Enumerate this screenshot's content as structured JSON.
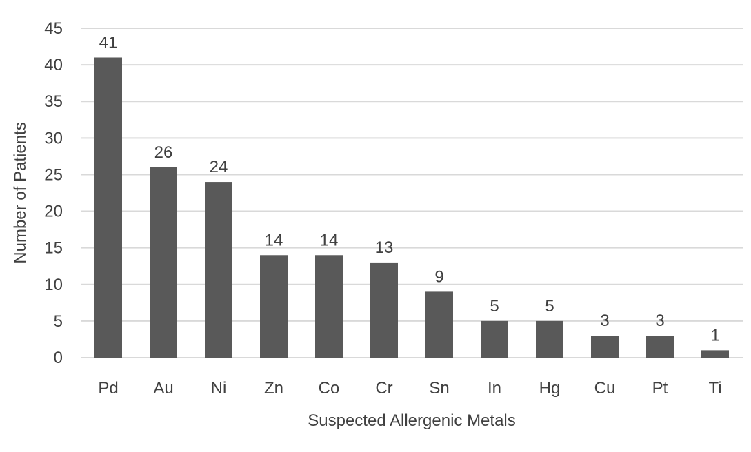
{
  "chart_data": {
    "type": "bar",
    "categories": [
      "Pd",
      "Au",
      "Ni",
      "Zn",
      "Co",
      "Cr",
      "Sn",
      "In",
      "Hg",
      "Cu",
      "Pt",
      "Ti"
    ],
    "values": [
      41,
      26,
      24,
      14,
      14,
      13,
      9,
      5,
      5,
      3,
      3,
      1
    ],
    "xlabel": "Suspected Allergenic Metals",
    "ylabel": "Number of Patients",
    "ylim": [
      0,
      45
    ],
    "yticks": [
      0,
      5,
      10,
      15,
      20,
      25,
      30,
      35,
      40,
      45
    ],
    "grid": true,
    "data_labels": true,
    "bar_color": "#595959",
    "grid_color": "#d9d9d9"
  }
}
